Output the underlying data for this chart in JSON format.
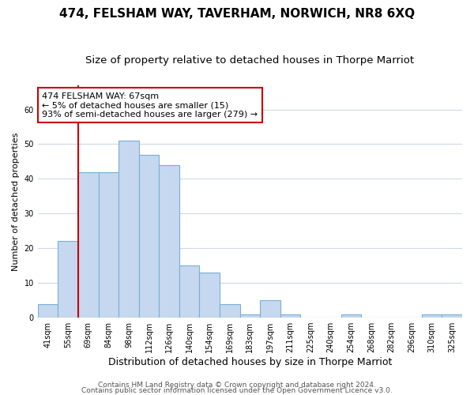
{
  "title": "474, FELSHAM WAY, TAVERHAM, NORWICH, NR8 6XQ",
  "subtitle": "Size of property relative to detached houses in Thorpe Marriot",
  "xlabel": "Distribution of detached houses by size in Thorpe Marriot",
  "ylabel": "Number of detached properties",
  "categories": [
    "41sqm",
    "55sqm",
    "69sqm",
    "84sqm",
    "98sqm",
    "112sqm",
    "126sqm",
    "140sqm",
    "154sqm",
    "169sqm",
    "183sqm",
    "197sqm",
    "211sqm",
    "225sqm",
    "240sqm",
    "254sqm",
    "268sqm",
    "282sqm",
    "296sqm",
    "310sqm",
    "325sqm"
  ],
  "values": [
    4,
    22,
    42,
    42,
    51,
    47,
    44,
    15,
    13,
    4,
    1,
    5,
    1,
    0,
    0,
    1,
    0,
    0,
    0,
    1,
    1
  ],
  "bar_color": "#c5d8f0",
  "bar_edge_color": "#7bafd4",
  "ref_line_index": 2,
  "ref_line_color": "#cc0000",
  "annotation_text": "474 FELSHAM WAY: 67sqm\n← 5% of detached houses are smaller (15)\n93% of semi-detached houses are larger (279) →",
  "annotation_box_facecolor": "#ffffff",
  "annotation_box_edgecolor": "#cc0000",
  "footer1": "Contains HM Land Registry data © Crown copyright and database right 2024.",
  "footer2": "Contains public sector information licensed under the Open Government Licence v3.0.",
  "ylim_max": 67,
  "background_color": "#ffffff",
  "plot_bg_color": "#ffffff",
  "grid_color": "#d0d8e8",
  "title_fontsize": 11,
  "subtitle_fontsize": 9.5,
  "xlabel_fontsize": 9,
  "ylabel_fontsize": 8,
  "tick_fontsize": 7,
  "annotation_fontsize": 8,
  "footer_fontsize": 6.5
}
